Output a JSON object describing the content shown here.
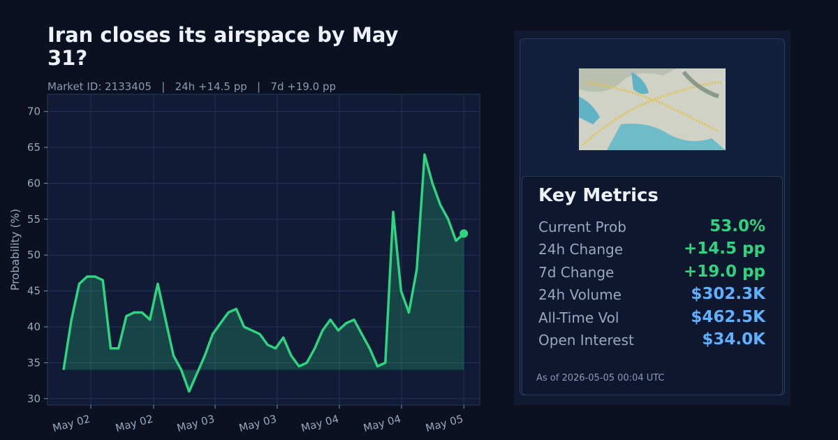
{
  "chart_data": {
    "type": "line",
    "title": "Iran closes its airspace by May 31?",
    "subtitle": "Market ID: 2133405   |   24h +14.5 pp   |   7d +19.0 pp",
    "ylabel": "Probability (%)",
    "color": "#2ed47f",
    "values": [
      34,
      41,
      46,
      47,
      47,
      46.5,
      37,
      37,
      41.5,
      42,
      42,
      41,
      46,
      41,
      36,
      34,
      31,
      33.5,
      36,
      39,
      40.5,
      42,
      42.5,
      40,
      39.5,
      39,
      37.5,
      37,
      38.5,
      36,
      34.5,
      35,
      37,
      39.5,
      41,
      39.5,
      40.5,
      41,
      39,
      37,
      34.5,
      35,
      56,
      45,
      42,
      48,
      64,
      60,
      57,
      55,
      52,
      53
    ],
    "xlim": [
      -2.05,
      53.03
    ],
    "xticks": [
      {
        "value": 3.47,
        "label": "May 02"
      },
      {
        "value": 11.48,
        "label": "May 02"
      },
      {
        "value": 19.31,
        "label": "May 03"
      },
      {
        "value": 27.22,
        "label": "May 03"
      },
      {
        "value": 35.14,
        "label": "May 04"
      },
      {
        "value": 43.06,
        "label": "May 04"
      },
      {
        "value": 51,
        "label": "May 05"
      }
    ],
    "ylim": [
      29.1,
      72.4
    ],
    "yticks": [
      30,
      35,
      40,
      45,
      50,
      55,
      60,
      65,
      70
    ],
    "grid": true
  },
  "metrics": {
    "title": "Key Metrics",
    "rows": [
      {
        "label": "Current Prob",
        "value": "53.0%",
        "color": "#2ed47f"
      },
      {
        "label": "24h Change",
        "value": "+14.5 pp",
        "color": "#2ed47f"
      },
      {
        "label": "7d Change",
        "value": "+19.0 pp",
        "color": "#2ed47f"
      },
      {
        "label": "24h Volume",
        "value": "$302.3K",
        "color": "#5eb1ff"
      },
      {
        "label": "All-Time Vol",
        "value": "$462.5K",
        "color": "#5eb1ff"
      },
      {
        "label": "Open Interest",
        "value": "$34.0K",
        "color": "#5eb1ff"
      }
    ],
    "footnote": "As of 2026-05-05 00:04 UTC"
  }
}
